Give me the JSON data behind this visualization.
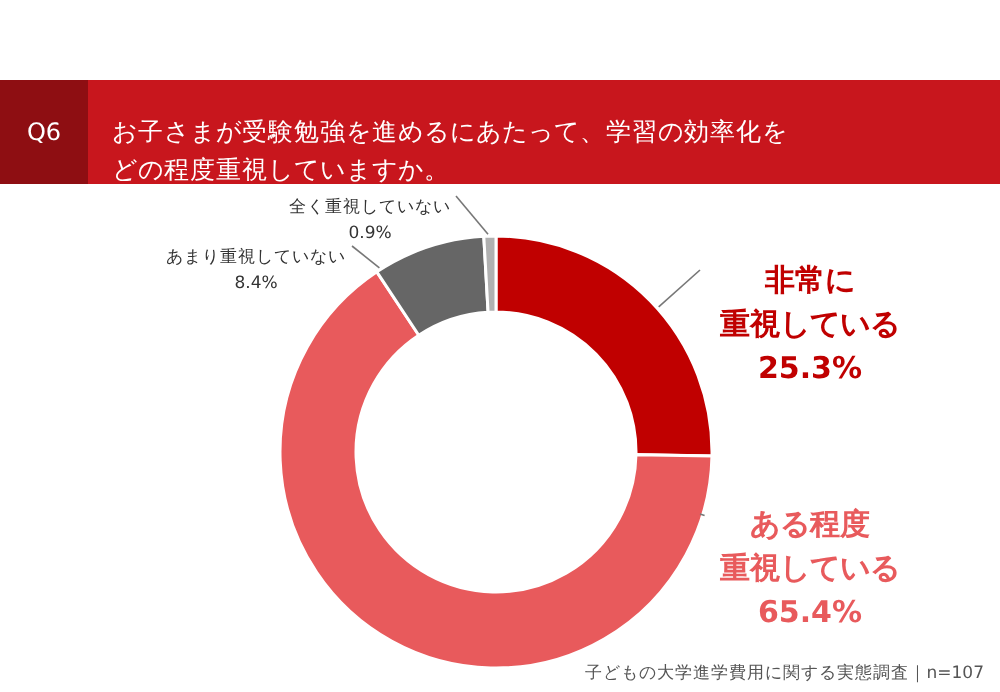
{
  "chart_data": {
    "type": "donut",
    "title": "お子さまが受験勉強を進めるにあたって、学習の効率化をどの程度重視していますか。",
    "categories": [
      "非常に重視している",
      "ある程度重視している",
      "あまり重視していない",
      "全く重視していない"
    ],
    "values": [
      25.3,
      65.4,
      8.4,
      0.9
    ],
    "value_labels": [
      "25.3%",
      "65.4%",
      "8.4%",
      "0.9%"
    ],
    "colors": [
      "#c00000",
      "#e85a5c",
      "#666666",
      "#b0b0b0"
    ],
    "annotations": [
      "Q6",
      "子どもの大学進学費用に関する実態調査｜n=107"
    ]
  }
}
